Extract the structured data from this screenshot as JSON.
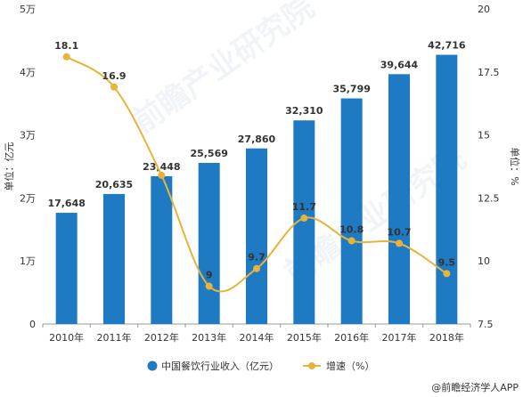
{
  "chart_data": {
    "type": "bar+line",
    "categories": [
      "2010年",
      "2011年",
      "2012年",
      "2013年",
      "2014年",
      "2015年",
      "2016年",
      "2017年",
      "2018年"
    ],
    "series": [
      {
        "name": "中国餐饮行业收入（亿元）",
        "type": "bar",
        "axis": "left",
        "values": [
          17648,
          20635,
          23448,
          25569,
          27860,
          32310,
          35799,
          39644,
          42716
        ],
        "labels": [
          "17,648",
          "20,635",
          "23,448",
          "25,569",
          "27,860",
          "32,310",
          "35,799",
          "39,644",
          "42,716"
        ],
        "color": "#1f7ac4"
      },
      {
        "name": "增速（%）",
        "type": "line",
        "axis": "right",
        "values": [
          18.1,
          16.9,
          13.4,
          9,
          9.7,
          11.7,
          10.8,
          10.7,
          9.5
        ],
        "labels": [
          "18.1",
          "16.9",
          "",
          "9",
          "9.7",
          "11.7",
          "10.8",
          "10.7",
          "9.5"
        ],
        "color": "#e8b33a"
      }
    ],
    "y_left": {
      "label": "单位：亿元",
      "range": [
        0,
        50000
      ],
      "ticks": [
        0,
        10000,
        20000,
        30000,
        40000,
        50000
      ],
      "tick_labels": [
        "0",
        "1万",
        "2万",
        "3万",
        "4万",
        "5万"
      ]
    },
    "y_right": {
      "label": "单位：%",
      "range": [
        7.5,
        20
      ],
      "ticks": [
        7.5,
        10,
        12.5,
        15,
        17.5,
        20
      ],
      "tick_labels": [
        "7.5",
        "10",
        "12.5",
        "15",
        "17.5",
        "20"
      ]
    },
    "grid": false,
    "legend_position": "bottom"
  },
  "legend": {
    "bar_label": "中国餐饮行业收入（亿元）",
    "line_label": "增速（%）"
  },
  "credit": {
    "text": "@前瞻经济学人APP"
  },
  "watermark": {
    "text": "前瞻产业研究院"
  },
  "colors": {
    "bar": "#1f7ac4",
    "line": "#e8b33a",
    "axis": "#999999"
  }
}
